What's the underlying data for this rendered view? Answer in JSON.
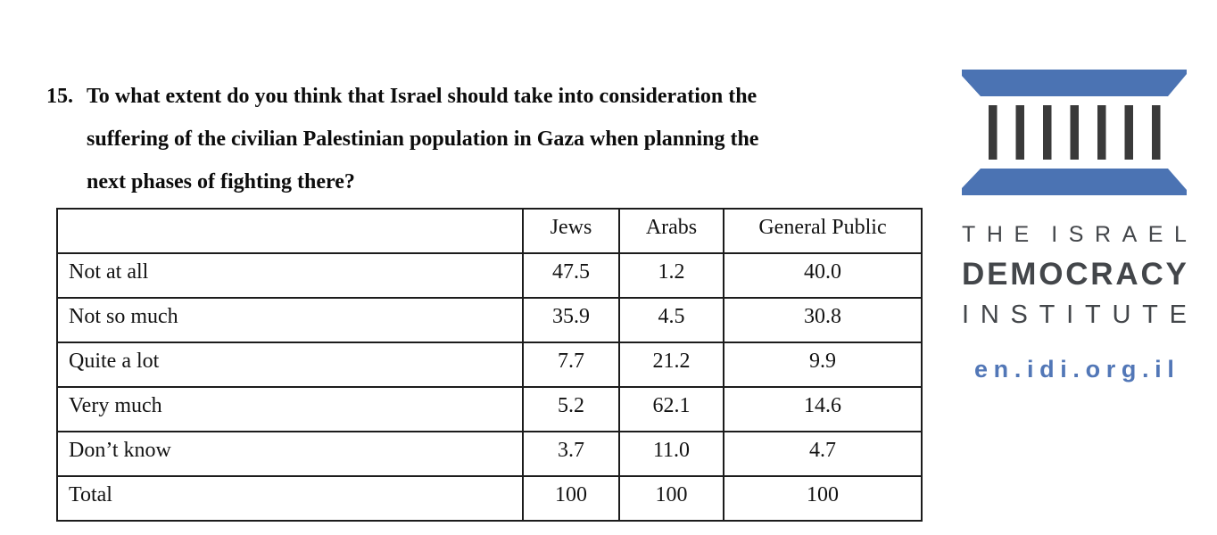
{
  "question": {
    "number": "15.",
    "lines": [
      "To what extent do you think that Israel should take into consideration the",
      "suffering of the civilian Palestinian population in Gaza when planning the",
      "next phases of fighting there?"
    ]
  },
  "table": {
    "columns": [
      "Jews",
      "Arabs",
      "General Public"
    ],
    "rows": [
      {
        "label": "Not at all",
        "values": [
          "47.5",
          "1.2",
          "40.0"
        ]
      },
      {
        "label": "Not so much",
        "values": [
          "35.9",
          "4.5",
          "30.8"
        ]
      },
      {
        "label": "Quite a lot",
        "values": [
          "7.7",
          "21.2",
          "9.9"
        ]
      },
      {
        "label": "Very much",
        "values": [
          "5.2",
          "62.1",
          "14.6"
        ]
      },
      {
        "label": "Don’t know",
        "values": [
          "3.7",
          "11.0",
          "4.7"
        ]
      },
      {
        "label": "Total",
        "values": [
          "100",
          "100",
          "100"
        ]
      }
    ]
  },
  "logo": {
    "line1": "THE ISRAEL",
    "line2": "DEMOCRACY",
    "line3": "INSTITUTE",
    "url": "en.idi.org.il",
    "colors": {
      "blue": "#4B73B3",
      "bars": "#3A3A3A",
      "wordmark": "#43464a",
      "url_blue": "#5277b7"
    }
  },
  "chart_data": {
    "type": "table",
    "title": "15. To what extent do you think that Israel should take into consideration the suffering of the civilian Palestinian population in Gaza when planning the next phases of fighting there?",
    "categories": [
      "Not at all",
      "Not so much",
      "Quite a lot",
      "Very much",
      "Don’t know",
      "Total"
    ],
    "series": [
      {
        "name": "Jews",
        "values": [
          47.5,
          35.9,
          7.7,
          5.2,
          3.7,
          100
        ]
      },
      {
        "name": "Arabs",
        "values": [
          1.2,
          4.5,
          21.2,
          62.1,
          11.0,
          100
        ]
      },
      {
        "name": "General Public",
        "values": [
          40.0,
          30.8,
          9.9,
          14.6,
          4.7,
          100
        ]
      }
    ]
  }
}
